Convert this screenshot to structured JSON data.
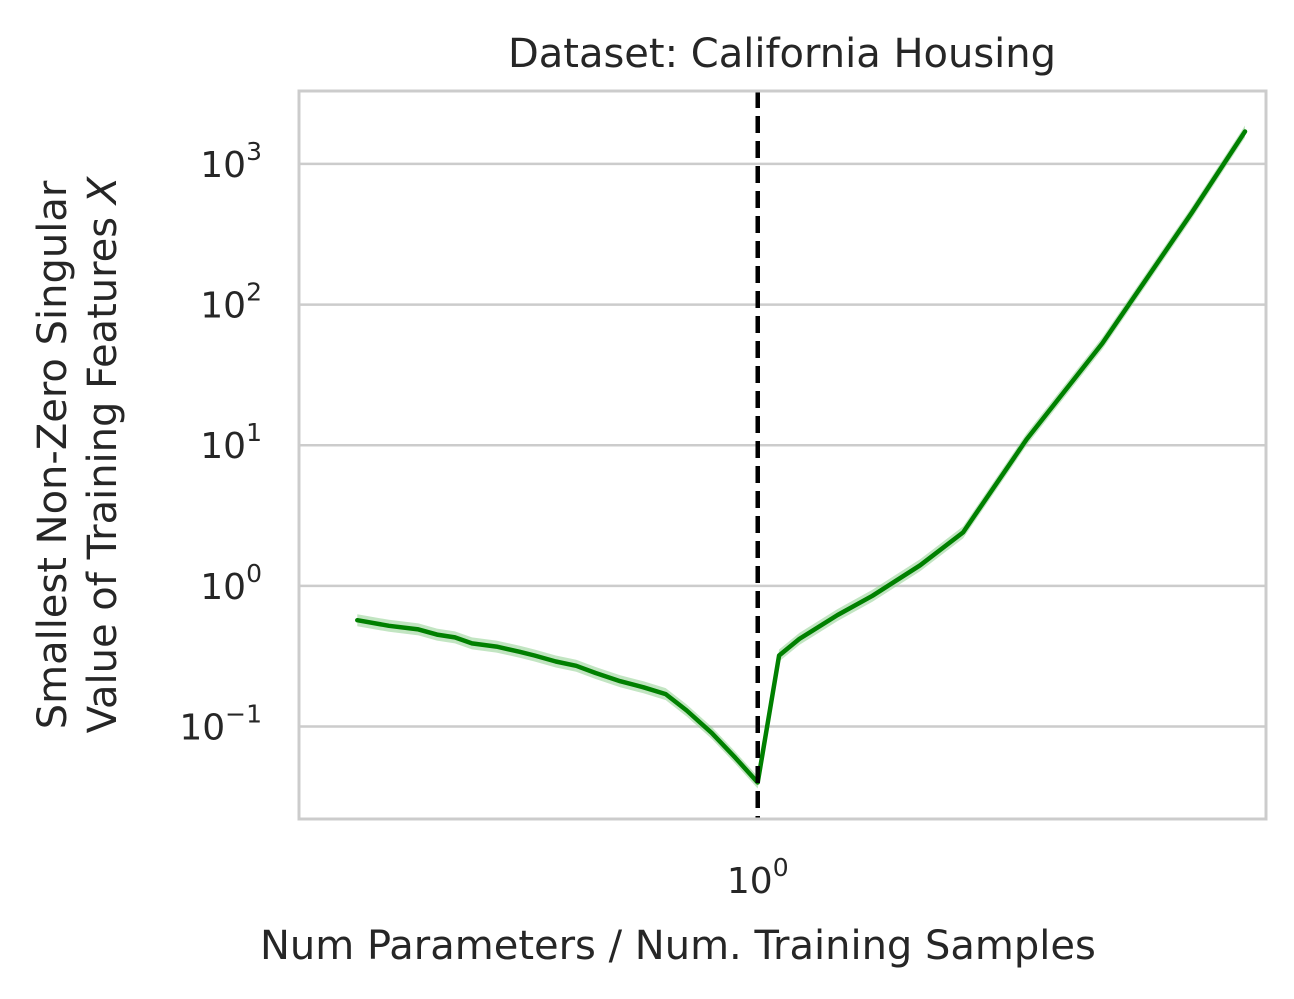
{
  "chart_data": {
    "type": "line",
    "title": "Dataset: California Housing",
    "xlabel": "Num Parameters / Num. Training Samples",
    "ylabel_line1": "Smallest Non-Zero Singular",
    "ylabel_line2": "Value of Training Features",
    "ylabel_symbol": "X",
    "x_scale": "log",
    "y_scale": "log",
    "xlim": [
      0.35,
      3.2
    ],
    "ylim": [
      0.022,
      3300
    ],
    "grid": "horizontal",
    "x_ticks": [
      {
        "value": 1,
        "base": "10",
        "exp": "0"
      }
    ],
    "y_ticks": [
      {
        "value": 0.1,
        "base": "10",
        "exp": "−1"
      },
      {
        "value": 1,
        "base": "10",
        "exp": "0"
      },
      {
        "value": 10,
        "base": "10",
        "exp": "1"
      },
      {
        "value": 100,
        "base": "10",
        "exp": "2"
      },
      {
        "value": 1000,
        "base": "10",
        "exp": "3"
      }
    ],
    "vline": {
      "x": 1.0,
      "style": "dashed",
      "color": "#000000"
    },
    "series": [
      {
        "color": "#008000",
        "band_color": "#90d090",
        "x": [
          0.4,
          0.43,
          0.46,
          0.48,
          0.5,
          0.52,
          0.55,
          0.58,
          0.6,
          0.63,
          0.66,
          0.69,
          0.73,
          0.77,
          0.81,
          0.85,
          0.9,
          0.95,
          1.0,
          1.05,
          1.1,
          1.2,
          1.3,
          1.45,
          1.6,
          1.85,
          2.2,
          2.7,
          3.05
        ],
        "y": [
          0.57,
          0.52,
          0.49,
          0.45,
          0.43,
          0.39,
          0.37,
          0.34,
          0.32,
          0.29,
          0.27,
          0.24,
          0.21,
          0.19,
          0.17,
          0.13,
          0.09,
          0.06,
          0.04,
          0.32,
          0.42,
          0.62,
          0.85,
          1.4,
          2.4,
          11,
          53,
          450,
          1700
        ]
      }
    ]
  }
}
